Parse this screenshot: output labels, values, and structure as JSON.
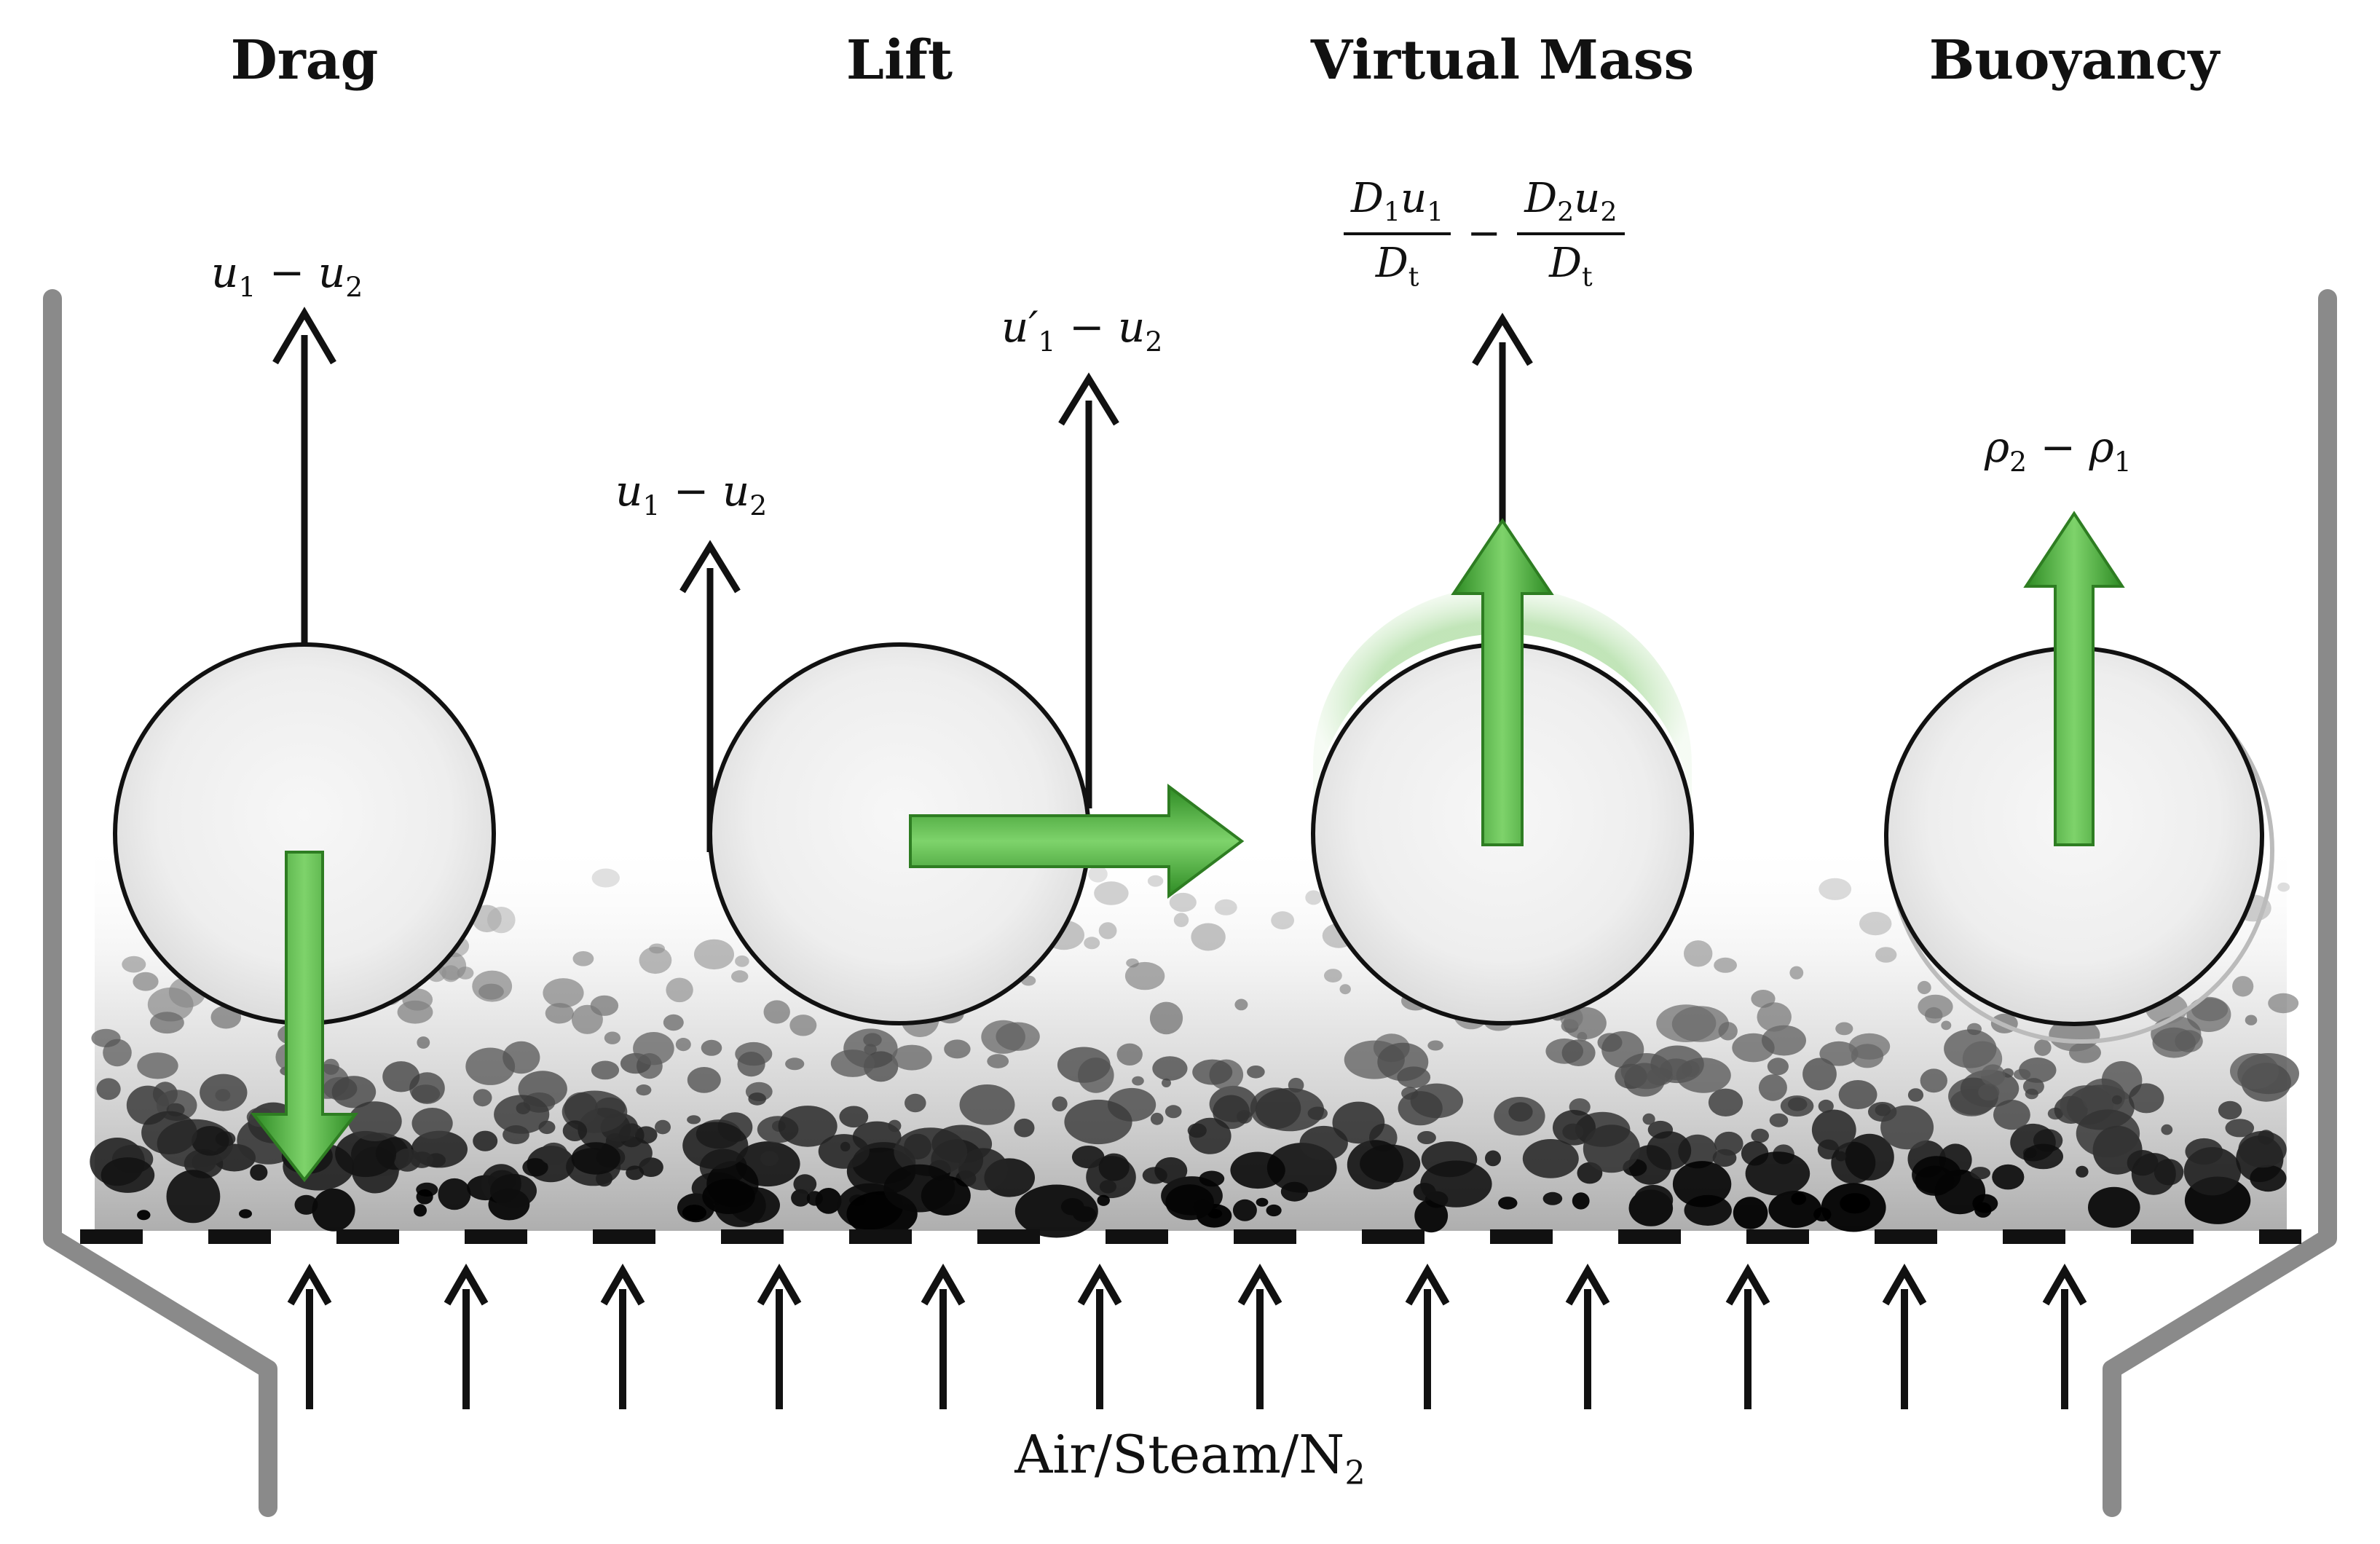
{
  "headings": {
    "drag": "Drag",
    "lift": "Lift",
    "virtual_mass": "Virtual Mass",
    "buoyancy": "Buoyancy"
  },
  "labels": {
    "drag_velocity": {
      "a": "u",
      "a_sub": "1",
      "op": " − ",
      "b": "u",
      "b_sub": "2"
    },
    "lift_velocity": {
      "a": "u",
      "a_sub": "1",
      "op": " − ",
      "b": "u",
      "b_sub": "2"
    },
    "lift_fluctuation": {
      "a": "u′",
      "a_sub": "1",
      "op": " − ",
      "b": "u",
      "b_sub": "2"
    },
    "virtual_mass": {
      "num1": "D",
      "num1_sub": "1",
      "num1_var": "u",
      "num1_var_sub": "1",
      "den1": "D",
      "den1_sub": "t",
      "minus": "−",
      "num2": "D",
      "num2_sub": "2",
      "num2_var": "u",
      "num2_var_sub": "2",
      "den2": "D",
      "den2_sub": "t"
    },
    "buoyancy_density": {
      "a": "ρ",
      "a_sub": "2",
      "op": " − ",
      "b": "ρ",
      "b_sub": "1"
    },
    "gas_inlet": {
      "text": "Air/Steam/N",
      "sub": "2"
    }
  },
  "colors": {
    "arrow_green": "#4caf3c",
    "arrow_green_dark": "#2e7d22",
    "vessel_gray": "#8a8a8a",
    "line_black": "#111111"
  }
}
